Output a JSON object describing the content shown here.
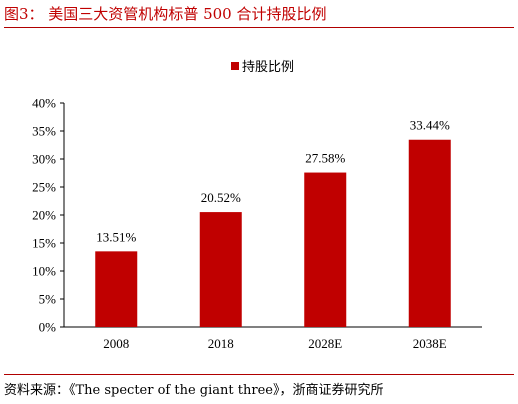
{
  "title": "图3： 美国三大资管机构标普 500 合计持股比例",
  "source": "资料来源：《The specter of the giant three》，浙商证券研究所",
  "colors": {
    "bar": "#c00000",
    "accent": "#c00000"
  },
  "chart_data": {
    "type": "bar",
    "categories": [
      "2008",
      "2018",
      "2028E",
      "2038E"
    ],
    "series": [
      {
        "name": "持股比例",
        "values": [
          13.51,
          20.52,
          27.58,
          33.44
        ]
      }
    ],
    "value_labels": [
      "13.51%",
      "20.52%",
      "27.58%",
      "33.44%"
    ],
    "ylim": [
      0,
      40
    ],
    "yticks": [
      "0%",
      "5%",
      "10%",
      "15%",
      "20%",
      "25%",
      "30%",
      "35%",
      "40%"
    ],
    "legend_position": "top-center",
    "grid": false
  }
}
